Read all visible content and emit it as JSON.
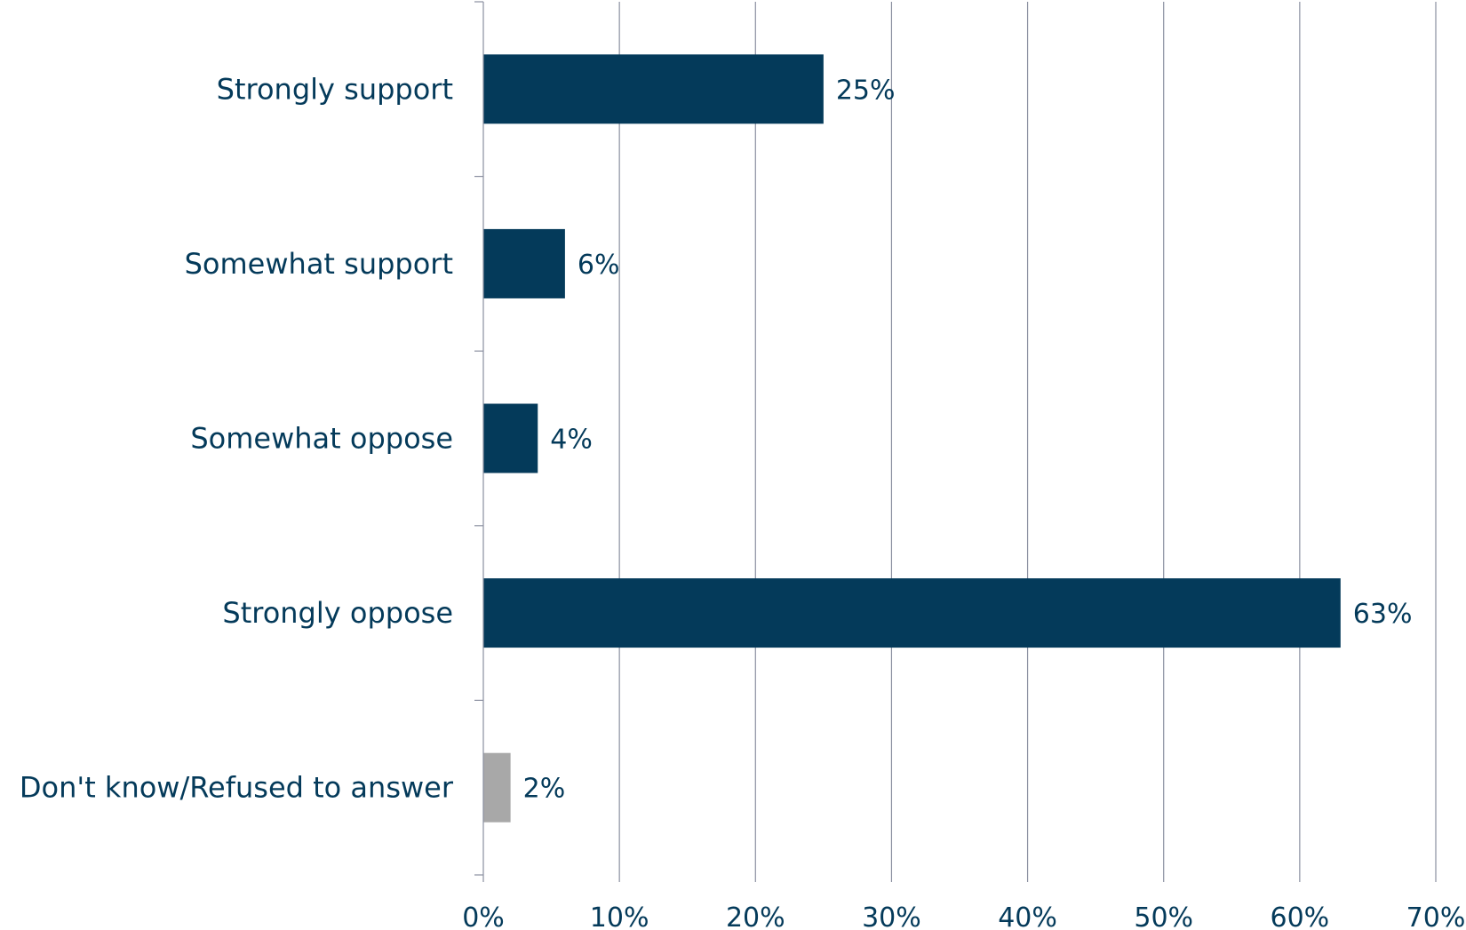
{
  "chart_data": {
    "type": "bar",
    "orientation": "horizontal",
    "categories": [
      "Strongly support",
      "Somewhat support",
      "Somewhat oppose",
      "Strongly oppose",
      "Don't know/Refused to answer"
    ],
    "values": [
      25,
      6,
      4,
      63,
      2
    ],
    "value_labels": [
      "25%",
      "6%",
      "4%",
      "63%",
      "2%"
    ],
    "xlim": [
      0,
      70
    ],
    "x_ticks": [
      0,
      10,
      20,
      30,
      40,
      50,
      60,
      70
    ],
    "x_tick_labels": [
      "0%",
      "10%",
      "20%",
      "30%",
      "40%",
      "50%",
      "60%",
      "70%"
    ],
    "grid": "vertical",
    "legend": "none",
    "colors": {
      "bar": "#043a5a",
      "bar_neutral": "#a8a8a8",
      "text": "#043a5a",
      "grid": "#8a8fa0",
      "axis": "#8a8fa0"
    },
    "bar_colors": [
      "#043a5a",
      "#043a5a",
      "#043a5a",
      "#043a5a",
      "#a8a8a8"
    ]
  }
}
